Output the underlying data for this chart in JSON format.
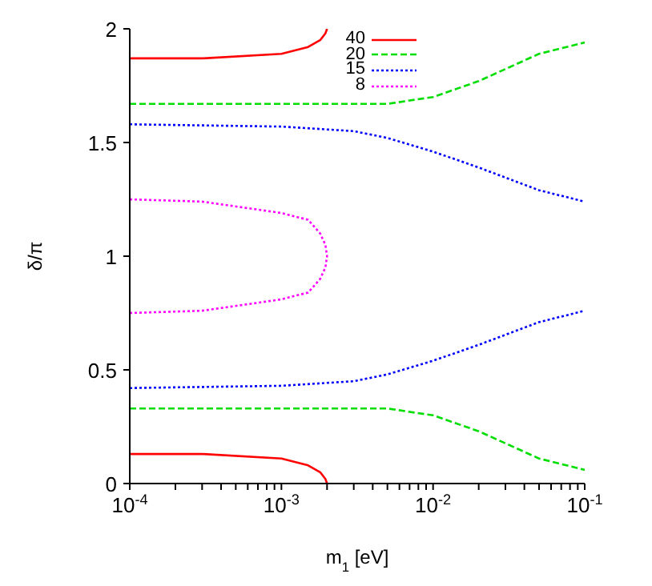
{
  "chart_data": {
    "type": "line",
    "xlabel": "m$_{1}$ [eV]",
    "ylabel": "δ/π",
    "log": "x",
    "xlim": [
      0.0001,
      0.1
    ],
    "ylim": [
      0,
      2
    ],
    "xticks": [
      {
        "value": 0.0001,
        "label": "10$^{-4}$"
      },
      {
        "value": 0.0002,
        "label": null
      },
      {
        "value": 0.0003,
        "label": null
      },
      {
        "value": 0.0004,
        "label": null
      },
      {
        "value": 0.0005,
        "label": null
      },
      {
        "value": 0.0006,
        "label": null
      },
      {
        "value": 0.0007,
        "label": null
      },
      {
        "value": 0.0008,
        "label": null
      },
      {
        "value": 0.0009,
        "label": null
      },
      {
        "value": 0.001,
        "label": "10$^{-3}$"
      },
      {
        "value": 0.002,
        "label": null
      },
      {
        "value": 0.003,
        "label": null
      },
      {
        "value": 0.004,
        "label": null
      },
      {
        "value": 0.005,
        "label": null
      },
      {
        "value": 0.006,
        "label": null
      },
      {
        "value": 0.007,
        "label": null
      },
      {
        "value": 0.008,
        "label": null
      },
      {
        "value": 0.009,
        "label": null
      },
      {
        "value": 0.01,
        "label": "10$^{-2}$"
      },
      {
        "value": 0.02,
        "label": null
      },
      {
        "value": 0.03,
        "label": null
      },
      {
        "value": 0.04,
        "label": null
      },
      {
        "value": 0.05,
        "label": null
      },
      {
        "value": 0.06,
        "label": null
      },
      {
        "value": 0.07,
        "label": null
      },
      {
        "value": 0.08,
        "label": null
      },
      {
        "value": 0.09,
        "label": null
      },
      {
        "value": 0.1,
        "label": "10$^{-1}$"
      }
    ],
    "yticks": [
      0,
      0.5,
      1,
      1.5,
      2
    ],
    "legend": "top",
    "marker": "none",
    "series": [
      {
        "name": "40",
        "color": "#ff0000",
        "line_style": "solid",
        "x": [
          0.0001,
          0.0003,
          0.001,
          0.0015,
          0.0018,
          0.00195,
          0.002,
          null,
          0.0001,
          0.0003,
          0.001,
          0.0015,
          0.0018,
          0.00195,
          0.002
        ],
        "values": [
          0.13,
          0.13,
          0.11,
          0.08,
          0.05,
          0.02,
          0,
          null,
          1.87,
          1.87,
          1.89,
          1.92,
          1.95,
          1.98,
          2
        ]
      },
      {
        "name": "20",
        "color": "#00dd00",
        "line_style": "dashed",
        "x": [
          0.0001,
          0.001,
          0.003,
          0.005,
          0.01,
          0.02,
          0.05,
          0.1,
          null,
          0.0001,
          0.001,
          0.003,
          0.005,
          0.01,
          0.02,
          0.05,
          0.1
        ],
        "values": [
          0.33,
          0.33,
          0.33,
          0.33,
          0.3,
          0.23,
          0.11,
          0.06,
          null,
          1.67,
          1.67,
          1.67,
          1.67,
          1.7,
          1.77,
          1.89,
          1.94
        ]
      },
      {
        "name": "15",
        "color": "#0000ff",
        "line_style": "dotted",
        "x": [
          0.0001,
          0.001,
          0.003,
          0.005,
          0.01,
          0.02,
          0.05,
          0.1,
          null,
          0.0001,
          0.001,
          0.003,
          0.005,
          0.01,
          0.02,
          0.05,
          0.1
        ],
        "values": [
          0.42,
          0.43,
          0.45,
          0.48,
          0.54,
          0.61,
          0.71,
          0.76,
          null,
          1.58,
          1.57,
          1.55,
          1.52,
          1.46,
          1.39,
          1.29,
          1.24
        ]
      },
      {
        "name": "8",
        "color": "#ff00ff",
        "line_style": "dotted",
        "x": [
          0.0001,
          0.0003,
          0.001,
          0.0015,
          0.0018,
          0.00195,
          0.002,
          0.00195,
          0.0018,
          0.0015,
          0.001,
          0.0003,
          0.0001
        ],
        "values": [
          0.75,
          0.76,
          0.81,
          0.84,
          0.9,
          0.95,
          1,
          1.05,
          1.1,
          1.16,
          1.19,
          1.24,
          1.25
        ]
      }
    ]
  }
}
